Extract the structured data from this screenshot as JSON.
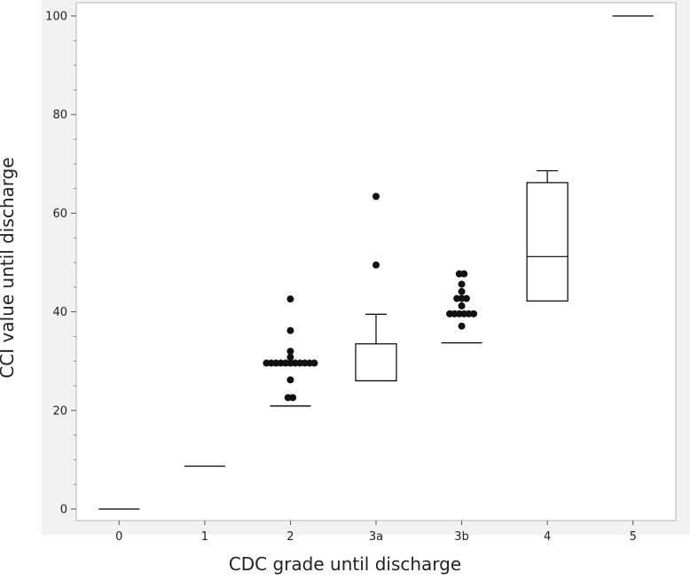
{
  "chart_data": {
    "type": "box",
    "title": "",
    "xlabel": "CDC grade until discharge",
    "ylabel": "CCI value until discharge",
    "categories": [
      "0",
      "1",
      "2",
      "3a",
      "3b",
      "4",
      "5"
    ],
    "ylim": [
      -2,
      103
    ],
    "yticks": [
      0,
      20,
      40,
      60,
      80,
      100
    ],
    "grid": false,
    "boxes": [
      {
        "category": "0",
        "whisker_low": 0,
        "q1": 0,
        "median": 0,
        "q3": 0,
        "whisker_high": 0,
        "outliers": []
      },
      {
        "category": "1",
        "whisker_low": 8.7,
        "q1": 8.7,
        "median": 8.7,
        "q3": 8.7,
        "whisker_high": 8.7,
        "outliers": []
      },
      {
        "category": "2",
        "whisker_low": 20.9,
        "q1": 20.9,
        "median": 20.9,
        "q3": 20.9,
        "whisker_high": 20.9,
        "outliers": [
          22.6,
          22.6,
          26.2,
          29.6,
          29.6,
          29.6,
          29.6,
          29.6,
          29.6,
          29.6,
          29.6,
          29.6,
          29.6,
          29.6,
          30.8,
          32.0,
          36.2,
          42.6
        ]
      },
      {
        "category": "3a",
        "whisker_low": 26.0,
        "q1": 26.0,
        "median": 26.0,
        "q3": 33.5,
        "whisker_high": 39.5,
        "outliers": [
          49.5,
          63.4
        ]
      },
      {
        "category": "3b",
        "whisker_low": 33.7,
        "q1": 33.7,
        "median": 33.7,
        "q3": 33.7,
        "whisker_high": 33.7,
        "outliers": [
          37.1,
          39.6,
          39.6,
          39.6,
          39.6,
          39.6,
          39.6,
          41.2,
          42.7,
          42.7,
          42.7,
          44.1,
          45.6,
          47.7,
          47.7
        ]
      },
      {
        "category": "4",
        "whisker_low": 42.2,
        "q1": 42.2,
        "median": 51.2,
        "q3": 66.2,
        "whisker_high": 68.6,
        "outliers": []
      },
      {
        "category": "5",
        "whisker_low": 100,
        "q1": 100,
        "median": 100,
        "q3": 100,
        "whisker_high": 100,
        "outliers": []
      }
    ]
  }
}
